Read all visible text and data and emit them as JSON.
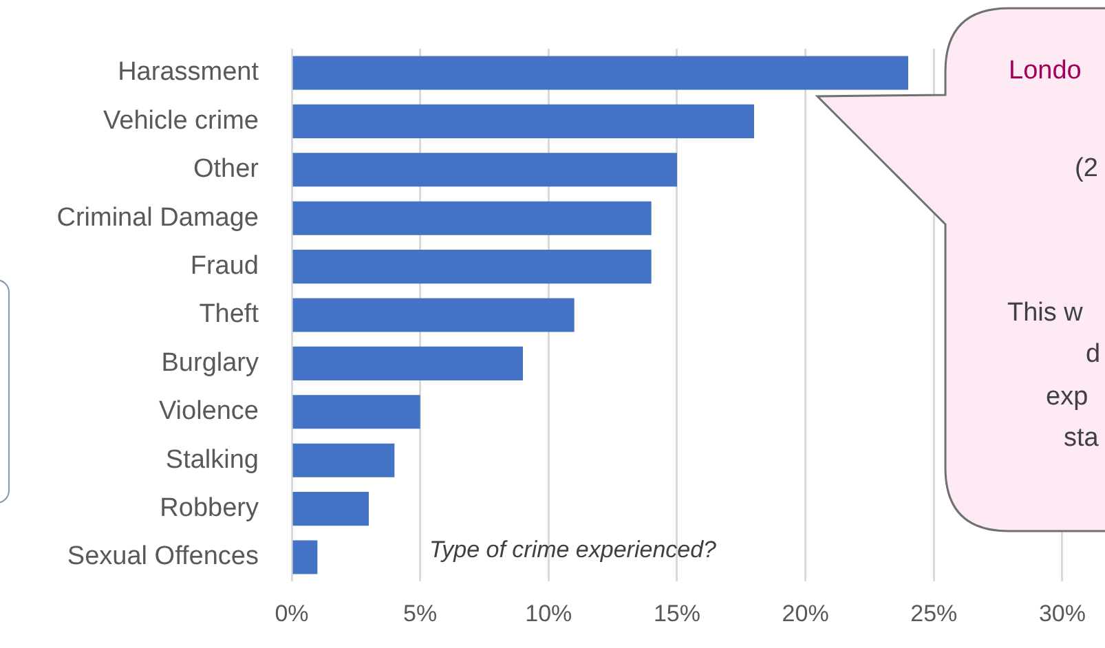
{
  "chart_data": {
    "type": "bar",
    "orientation": "horizontal",
    "title": "Type of crime experienced?",
    "categories": [
      "Harassment",
      "Vehicle crime",
      "Other",
      "Criminal Damage",
      "Fraud",
      "Theft",
      "Burglary",
      "Violence",
      "Stalking",
      "Robbery",
      "Sexual Offences"
    ],
    "values": [
      24,
      18,
      15,
      14,
      14,
      11,
      9,
      5,
      4,
      3,
      1
    ],
    "color": "#4472c4",
    "xlim": [
      0,
      30
    ],
    "xticks": [
      {
        "value": 0,
        "label": "0%"
      },
      {
        "value": 5,
        "label": "5%"
      },
      {
        "value": 10,
        "label": "10%"
      },
      {
        "value": 15,
        "label": "15%"
      },
      {
        "value": 20,
        "label": "20%"
      },
      {
        "value": 25,
        "label": "25%"
      },
      {
        "value": 30,
        "label": "30%"
      }
    ],
    "grid": "x",
    "legend": false,
    "annotations": [
      "Londo",
      "(2",
      "This w",
      "d",
      "exp",
      "sta"
    ]
  }
}
